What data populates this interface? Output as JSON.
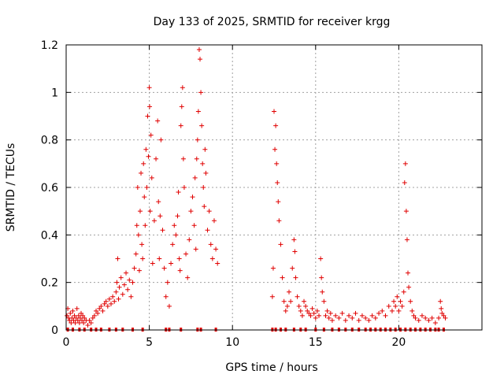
{
  "chart_data": {
    "type": "scatter",
    "title": "Day 133 of 2025, SRMTID for receiver krgg",
    "xlabel": "GPS time / hours",
    "ylabel": "SRMTID / TECUs",
    "xlim": [
      0,
      25
    ],
    "ylim": [
      0,
      1.2
    ],
    "xticks": [
      0,
      5,
      10,
      15,
      20
    ],
    "xtick_labels": [
      "0",
      "5",
      "10",
      "15",
      "20"
    ],
    "yticks": [
      0,
      0.2,
      0.4,
      0.6,
      0.8,
      1,
      1.2
    ],
    "ytick_labels": [
      "0",
      "0.2",
      "0.4",
      "0.6",
      "0.8",
      "1",
      "1.2"
    ],
    "grid": true,
    "marker": "+",
    "color": "#e00000",
    "series": [
      {
        "name": "SRMTID",
        "points": [
          [
            0.05,
            0.06
          ],
          [
            0.1,
            0.09
          ],
          [
            0.15,
            0.05
          ],
          [
            0.2,
            0.04
          ],
          [
            0.25,
            0.07
          ],
          [
            0.3,
            0.03
          ],
          [
            0.35,
            0.05
          ],
          [
            0.4,
            0.08
          ],
          [
            0.45,
            0.04
          ],
          [
            0.5,
            0.06
          ],
          [
            0.55,
            0.03
          ],
          [
            0.6,
            0.05
          ],
          [
            0.65,
            0.09
          ],
          [
            0.7,
            0.04
          ],
          [
            0.75,
            0.06
          ],
          [
            0.8,
            0.03
          ],
          [
            0.85,
            0.05
          ],
          [
            0.9,
            0.07
          ],
          [
            0.95,
            0.04
          ],
          [
            1.0,
            0.06
          ],
          [
            1.05,
            0.03
          ],
          [
            1.1,
            0.05
          ],
          [
            1.2,
            0.04
          ],
          [
            1.3,
            0.02
          ],
          [
            1.4,
            0.04
          ],
          [
            1.5,
            0.03
          ],
          [
            1.6,
            0.05
          ],
          [
            1.7,
            0.06
          ],
          [
            1.8,
            0.08
          ],
          [
            1.9,
            0.07
          ],
          [
            2.0,
            0.09
          ],
          [
            2.1,
            0.1
          ],
          [
            2.2,
            0.08
          ],
          [
            2.3,
            0.11
          ],
          [
            2.4,
            0.12
          ],
          [
            2.5,
            0.1
          ],
          [
            2.6,
            0.13
          ],
          [
            2.7,
            0.11
          ],
          [
            2.8,
            0.14
          ],
          [
            2.9,
            0.12
          ],
          [
            3.0,
            0.16
          ],
          [
            3.05,
            0.2
          ],
          [
            3.1,
            0.3
          ],
          [
            3.15,
            0.13
          ],
          [
            3.2,
            0.18
          ],
          [
            3.3,
            0.22
          ],
          [
            3.4,
            0.15
          ],
          [
            3.5,
            0.19
          ],
          [
            3.6,
            0.24
          ],
          [
            3.7,
            0.17
          ],
          [
            3.8,
            0.21
          ],
          [
            3.9,
            0.14
          ],
          [
            4.0,
            0.2
          ],
          [
            4.1,
            0.26
          ],
          [
            4.2,
            0.32
          ],
          [
            4.25,
            0.44
          ],
          [
            4.3,
            0.6
          ],
          [
            4.35,
            0.4
          ],
          [
            4.4,
            0.25
          ],
          [
            4.45,
            0.5
          ],
          [
            4.5,
            0.66
          ],
          [
            4.55,
            0.36
          ],
          [
            4.6,
            0.3
          ],
          [
            4.65,
            0.7
          ],
          [
            4.7,
            0.56
          ],
          [
            4.75,
            0.44
          ],
          [
            4.8,
            0.76
          ],
          [
            4.85,
            0.6
          ],
          [
            4.9,
            0.9
          ],
          [
            4.95,
            0.73
          ],
          [
            5.0,
            1.02
          ],
          [
            5.02,
            0.94
          ],
          [
            5.05,
            0.5
          ],
          [
            5.1,
            0.82
          ],
          [
            5.15,
            0.64
          ],
          [
            5.2,
            0.28
          ],
          [
            5.3,
            0.46
          ],
          [
            5.4,
            0.72
          ],
          [
            5.5,
            0.88
          ],
          [
            5.55,
            0.54
          ],
          [
            5.6,
            0.3
          ],
          [
            5.65,
            0.48
          ],
          [
            5.7,
            0.8
          ],
          [
            5.8,
            0.42
          ],
          [
            5.9,
            0.26
          ],
          [
            6.0,
            0.14
          ],
          [
            6.1,
            0.2
          ],
          [
            6.2,
            0.1
          ],
          [
            6.3,
            0.28
          ],
          [
            6.4,
            0.36
          ],
          [
            6.5,
            0.44
          ],
          [
            6.6,
            0.4
          ],
          [
            6.7,
            0.48
          ],
          [
            6.75,
            0.58
          ],
          [
            6.8,
            0.3
          ],
          [
            6.85,
            0.25
          ],
          [
            6.9,
            0.86
          ],
          [
            6.95,
            0.94
          ],
          [
            7.0,
            1.02
          ],
          [
            7.05,
            0.72
          ],
          [
            7.1,
            0.6
          ],
          [
            7.2,
            0.32
          ],
          [
            7.3,
            0.22
          ],
          [
            7.4,
            0.38
          ],
          [
            7.5,
            0.5
          ],
          [
            7.6,
            0.56
          ],
          [
            7.7,
            0.44
          ],
          [
            7.75,
            0.64
          ],
          [
            7.8,
            0.34
          ],
          [
            7.85,
            0.72
          ],
          [
            7.9,
            0.8
          ],
          [
            7.95,
            0.92
          ],
          [
            8.0,
            1.18
          ],
          [
            8.05,
            1.14
          ],
          [
            8.1,
            1.0
          ],
          [
            8.15,
            0.86
          ],
          [
            8.2,
            0.7
          ],
          [
            8.25,
            0.6
          ],
          [
            8.3,
            0.52
          ],
          [
            8.35,
            0.76
          ],
          [
            8.4,
            0.66
          ],
          [
            8.5,
            0.42
          ],
          [
            8.6,
            0.5
          ],
          [
            8.7,
            0.36
          ],
          [
            8.8,
            0.3
          ],
          [
            8.9,
            0.46
          ],
          [
            9.0,
            0.34
          ],
          [
            9.1,
            0.28
          ],
          [
            12.4,
            0.14
          ],
          [
            12.45,
            0.26
          ],
          [
            12.5,
            0.92
          ],
          [
            12.55,
            0.76
          ],
          [
            12.6,
            0.86
          ],
          [
            12.65,
            0.7
          ],
          [
            12.7,
            0.62
          ],
          [
            12.75,
            0.54
          ],
          [
            12.8,
            0.46
          ],
          [
            12.9,
            0.36
          ],
          [
            13.0,
            0.22
          ],
          [
            13.1,
            0.12
          ],
          [
            13.2,
            0.08
          ],
          [
            13.3,
            0.1
          ],
          [
            13.4,
            0.16
          ],
          [
            13.5,
            0.12
          ],
          [
            13.6,
            0.26
          ],
          [
            13.7,
            0.38
          ],
          [
            13.75,
            0.33
          ],
          [
            13.8,
            0.22
          ],
          [
            13.9,
            0.14
          ],
          [
            14.0,
            0.1
          ],
          [
            14.1,
            0.08
          ],
          [
            14.2,
            0.06
          ],
          [
            14.3,
            0.12
          ],
          [
            14.4,
            0.1
          ],
          [
            14.5,
            0.08
          ],
          [
            14.6,
            0.07
          ],
          [
            14.7,
            0.06
          ],
          [
            14.8,
            0.09
          ],
          [
            14.9,
            0.07
          ],
          [
            15.0,
            0.05
          ],
          [
            15.1,
            0.08
          ],
          [
            15.2,
            0.06
          ],
          [
            15.3,
            0.3
          ],
          [
            15.35,
            0.22
          ],
          [
            15.4,
            0.16
          ],
          [
            15.5,
            0.12
          ],
          [
            15.6,
            0.06
          ],
          [
            15.7,
            0.08
          ],
          [
            15.8,
            0.05
          ],
          [
            15.9,
            0.07
          ],
          [
            16.0,
            0.04
          ],
          [
            16.2,
            0.06
          ],
          [
            16.4,
            0.05
          ],
          [
            16.6,
            0.07
          ],
          [
            16.8,
            0.04
          ],
          [
            17.0,
            0.06
          ],
          [
            17.2,
            0.05
          ],
          [
            17.4,
            0.07
          ],
          [
            17.6,
            0.04
          ],
          [
            17.8,
            0.06
          ],
          [
            18.0,
            0.05
          ],
          [
            18.2,
            0.04
          ],
          [
            18.4,
            0.06
          ],
          [
            18.6,
            0.05
          ],
          [
            18.8,
            0.07
          ],
          [
            19.0,
            0.08
          ],
          [
            19.2,
            0.06
          ],
          [
            19.4,
            0.1
          ],
          [
            19.6,
            0.08
          ],
          [
            19.7,
            0.12
          ],
          [
            19.8,
            0.1
          ],
          [
            19.9,
            0.14
          ],
          [
            20.0,
            0.08
          ],
          [
            20.1,
            0.12
          ],
          [
            20.2,
            0.1
          ],
          [
            20.3,
            0.16
          ],
          [
            20.35,
            0.62
          ],
          [
            20.4,
            0.7
          ],
          [
            20.45,
            0.5
          ],
          [
            20.5,
            0.38
          ],
          [
            20.55,
            0.24
          ],
          [
            20.6,
            0.18
          ],
          [
            20.7,
            0.12
          ],
          [
            20.8,
            0.08
          ],
          [
            20.9,
            0.06
          ],
          [
            21.0,
            0.05
          ],
          [
            21.2,
            0.04
          ],
          [
            21.4,
            0.06
          ],
          [
            21.6,
            0.05
          ],
          [
            21.8,
            0.04
          ],
          [
            22.0,
            0.05
          ],
          [
            22.2,
            0.03
          ],
          [
            22.4,
            0.05
          ],
          [
            22.5,
            0.12
          ],
          [
            22.55,
            0.09
          ],
          [
            22.6,
            0.07
          ],
          [
            22.7,
            0.06
          ],
          [
            22.8,
            0.05
          ]
        ],
        "zero_points_x": [
          0.1,
          0.4,
          0.8,
          1.1,
          1.5,
          1.8,
          2.1,
          2.6,
          3.0,
          3.4,
          4.0,
          4.6,
          6.0,
          6.2,
          6.9,
          7.9,
          8.1,
          9.0,
          12.4,
          12.6,
          12.9,
          13.2,
          13.7,
          14.1,
          14.4,
          15.0,
          15.5,
          16.0,
          16.4,
          16.8,
          17.2,
          17.6,
          18.0,
          18.3,
          18.6,
          18.9,
          19.2,
          19.5,
          19.8,
          20.1,
          20.4,
          20.7,
          21.0,
          21.3,
          21.6,
          21.9,
          22.2,
          22.4,
          22.7
        ]
      }
    ]
  }
}
